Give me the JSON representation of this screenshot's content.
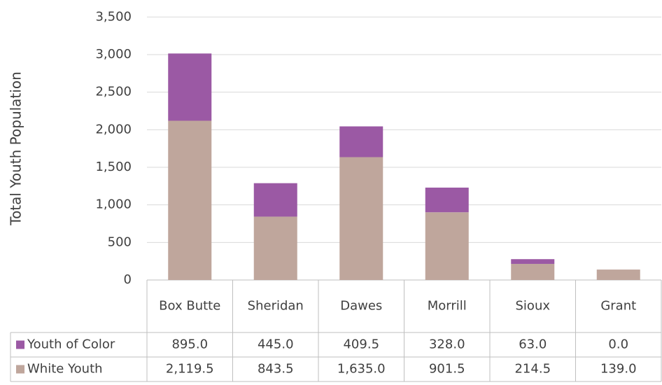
{
  "chart_data": {
    "type": "stacked_bar",
    "y_axis_label": "Total Youth Population",
    "categories": [
      "Box Butte",
      "Sheridan",
      "Dawes",
      "Morrill",
      "Sioux",
      "Grant"
    ],
    "series": [
      {
        "name": "Youth of Color",
        "color": "#9b59a4",
        "values": [
          895.0,
          445.0,
          409.5,
          328.0,
          63.0,
          0.0
        ],
        "value_labels": [
          "895.0",
          "445.0",
          "409.5",
          "328.0",
          "63.0",
          "0.0"
        ]
      },
      {
        "name": "White Youth",
        "color": "#bfa69c",
        "values": [
          2119.5,
          843.5,
          1635.0,
          901.5,
          214.5,
          139.0
        ],
        "value_labels": [
          "2,119.5",
          "843.5",
          "1,635.0",
          "901.5",
          "214.5",
          "139.0"
        ]
      }
    ],
    "ylim": [
      0,
      3500
    ],
    "yticks": [
      0,
      500,
      {
        "value": 1000,
        "label": "1,000"
      },
      {
        "value": 1500,
        "label": "1,500"
      },
      {
        "value": 2000,
        "label": "2,000"
      },
      {
        "value": 2500,
        "label": "2,500"
      },
      {
        "value": 3000,
        "label": "3,000"
      },
      {
        "value": 3500,
        "label": "3,500"
      }
    ],
    "grid": true
  }
}
